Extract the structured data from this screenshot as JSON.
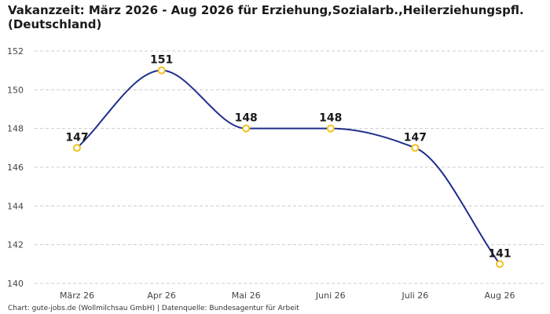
{
  "title": "Vakanzzeit: März 2026 - Aug 2026 für Erziehung,Sozialarb.,Heilerziehungspfl. (Deutschland)",
  "footer": "Chart: gute-jobs.de (Wollmilchsau GmbH) | Datenquelle: Bundesagentur für Arbeit",
  "colors": {
    "line": "#1f2f8c",
    "marker": "#f2c21b",
    "grid": "#cccccc"
  },
  "chart_data": {
    "type": "line",
    "title": "Vakanzzeit: März 2026 - Aug 2026 für Erziehung,Sozialarb.,Heilerziehungspfl. (Deutschland)",
    "categories": [
      "März 26",
      "Apr 26",
      "Mai 26",
      "Juni 26",
      "Juli 26",
      "Aug 26"
    ],
    "values": [
      147,
      151,
      148,
      148,
      147,
      141
    ],
    "ylim": [
      140,
      152
    ],
    "yticks": [
      140,
      142,
      144,
      146,
      148,
      150,
      152
    ],
    "grid": true,
    "legend": "none"
  }
}
